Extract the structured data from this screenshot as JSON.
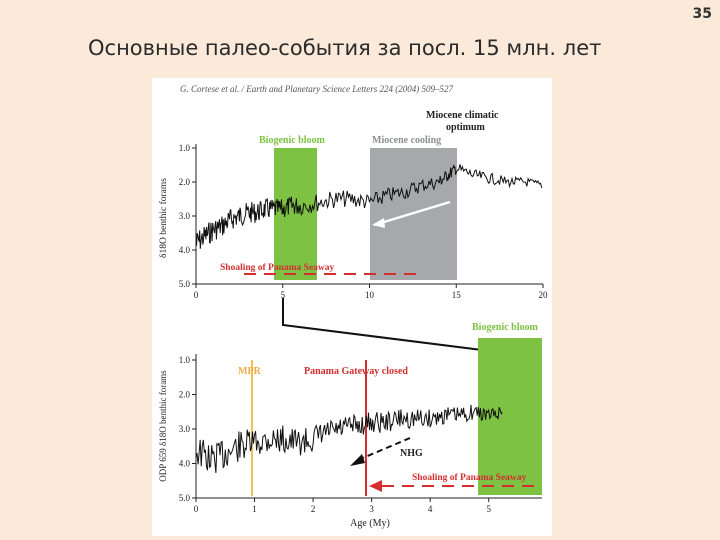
{
  "slide": {
    "number": "35",
    "title": "Основные палео-события за посл. 15 млн. лет"
  },
  "figure": {
    "citation": "G. Cortese et al. / Earth and Planetary Science Letters 224 (2004) 509–527",
    "annotations": {
      "biogenic_bloom": "Biogenic bloom",
      "miocene_cooling": "Miocene cooling",
      "miocene_optimum_line1": "Miocene climatic",
      "miocene_optimum_line2": "optimum",
      "shoaling": "Shoaling of Panama Seaway",
      "mpr": "MPR",
      "panama_closed": "Panama Gateway closed",
      "nhg": "NHG"
    },
    "colors": {
      "green": "#7dc242",
      "gray": "#a6a8ab",
      "red": "#d32f2f",
      "mpr": "#f2c14e",
      "black": "#111111"
    }
  },
  "chart_data": [
    {
      "type": "line",
      "panel": "top",
      "ylabel": "δ18O benthic forams",
      "xlabel": "",
      "xlim": [
        0,
        20
      ],
      "ylim": [
        5.0,
        1.0
      ],
      "y_inverted": true,
      "x_ticks": [
        "0",
        "5",
        "10",
        "15",
        "20"
      ],
      "y_ticks": [
        "1.0",
        "2.0",
        "3.0",
        "4.0",
        "5.0"
      ],
      "series": [
        {
          "x": [
            0,
            0.5,
            1,
            1.5,
            2,
            2.5,
            3,
            3.5,
            4,
            4.5,
            5,
            5.5,
            6,
            7,
            8,
            9,
            10,
            11,
            12,
            13,
            14,
            14.5,
            15,
            16,
            17,
            18,
            19,
            20
          ],
          "values": [
            3.8,
            3.6,
            3.4,
            3.3,
            3.1,
            3.0,
            2.9,
            2.9,
            2.8,
            2.8,
            2.8,
            2.7,
            2.7,
            2.6,
            2.5,
            2.5,
            2.6,
            2.4,
            2.3,
            2.1,
            2.0,
            1.8,
            1.6,
            1.8,
            1.9,
            2.0,
            2.0,
            2.1
          ]
        }
      ],
      "bands": [
        {
          "label": "Biogenic bloom",
          "x": [
            4.6,
            7.0
          ],
          "color": "#7dc242"
        },
        {
          "label": "Miocene cooling",
          "x": [
            10.0,
            15.0
          ],
          "color": "#a6a8ab"
        }
      ]
    },
    {
      "type": "line",
      "panel": "bottom",
      "ylabel": "ODP 659 δ18O benthic forams",
      "xlabel": "Age (My)",
      "xlim": [
        0,
        5.5
      ],
      "ylim": [
        5.0,
        1.0
      ],
      "y_inverted": true,
      "x_ticks": [
        "0",
        "1",
        "2",
        "3",
        "4",
        "5"
      ],
      "y_ticks": [
        "1.0",
        "2.0",
        "3.0",
        "4.0",
        "5.0"
      ],
      "series": [
        {
          "x": [
            0,
            0.25,
            0.5,
            0.75,
            1,
            1.25,
            1.5,
            1.75,
            2,
            2.25,
            2.5,
            2.75,
            3,
            3.25,
            3.5,
            3.75,
            4,
            4.25,
            4.5,
            4.75,
            5,
            5.25
          ],
          "values": [
            3.6,
            3.9,
            3.7,
            3.5,
            3.4,
            3.3,
            3.3,
            3.4,
            3.3,
            3.1,
            3.0,
            2.9,
            2.8,
            2.8,
            2.7,
            2.7,
            2.7,
            2.6,
            2.6,
            2.5,
            2.6,
            2.5
          ]
        }
      ],
      "bands": [
        {
          "label": "Biogenic bloom",
          "x": [
            4.5,
            5.5
          ],
          "color": "#7dc242"
        }
      ],
      "markers": [
        {
          "label": "MPR",
          "x": 0.9
        },
        {
          "label": "Panama Gateway closed",
          "x": 2.7
        }
      ]
    }
  ]
}
